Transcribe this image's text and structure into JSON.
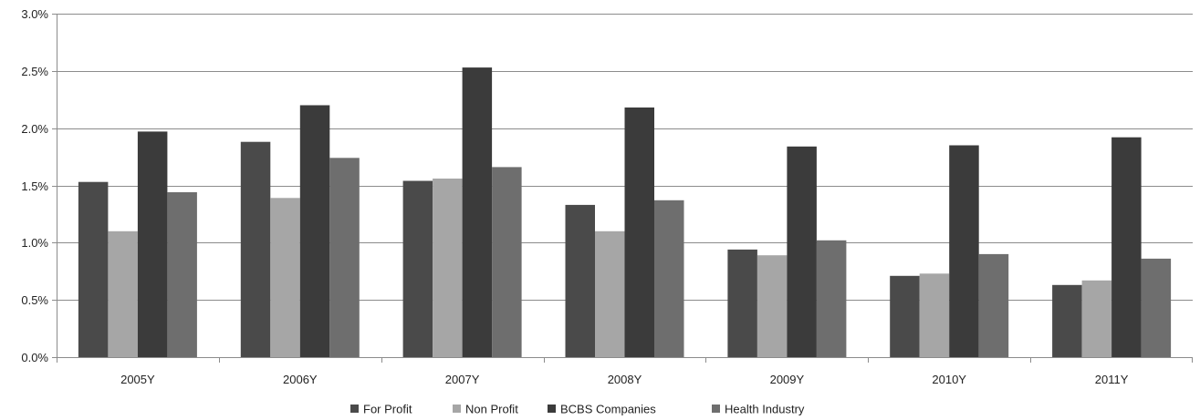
{
  "chart_data": {
    "type": "bar",
    "title": "",
    "xlabel": "",
    "ylabel": "",
    "categories": [
      "2005Y",
      "2006Y",
      "2007Y",
      "2008Y",
      "2009Y",
      "2010Y",
      "2011Y"
    ],
    "ylim": [
      0,
      3.0
    ],
    "yticks": [
      0.0,
      0.5,
      1.0,
      1.5,
      2.0,
      2.5,
      3.0
    ],
    "ytick_labels": [
      "0.0%",
      "0.5%",
      "1.0%",
      "1.5%",
      "2.0%",
      "2.5%",
      "3.0%"
    ],
    "grid": "horizontal",
    "legend_position": "bottom",
    "series": [
      {
        "name": "For Profit",
        "color": "#4a4a4a",
        "values": [
          1.53,
          1.88,
          1.54,
          1.33,
          0.94,
          0.71,
          0.63
        ]
      },
      {
        "name": "Non Profit",
        "color": "#a6a6a6",
        "values": [
          1.1,
          1.39,
          1.56,
          1.1,
          0.89,
          0.73,
          0.67
        ]
      },
      {
        "name": "BCBS Companies",
        "color": "#3b3b3b",
        "values": [
          1.97,
          2.2,
          2.53,
          2.18,
          1.84,
          1.85,
          1.92
        ]
      },
      {
        "name": "Health Industry",
        "color": "#6e6e6e",
        "values": [
          1.44,
          1.74,
          1.66,
          1.37,
          1.02,
          0.9,
          0.86
        ]
      }
    ]
  }
}
